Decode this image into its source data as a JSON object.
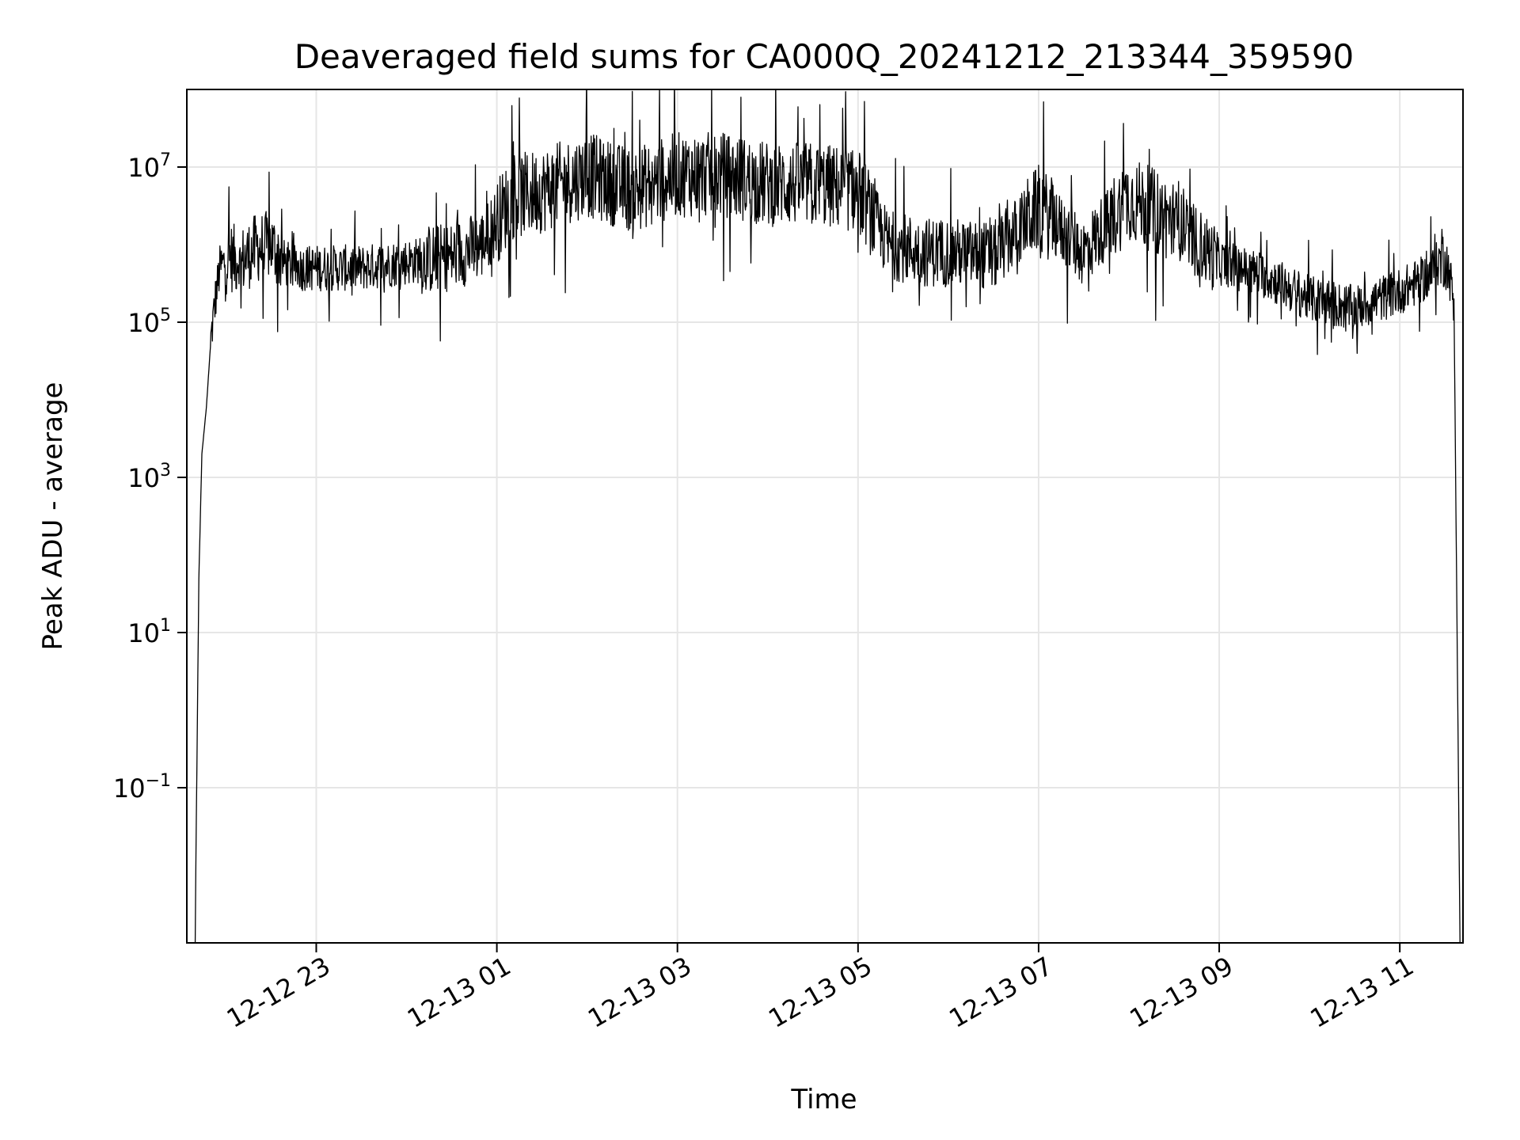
{
  "chart_data": {
    "type": "line",
    "title": "Deaveraged field sums for CA000Q_20241212_213344_359590",
    "xlabel": "Time",
    "ylabel": "Peak ADU - average",
    "yscale": "log",
    "grid": true,
    "legend": "none",
    "line_color": "#000000",
    "grid_color": "#e6e6e6",
    "xlim": [
      "2024-12-12 21:34",
      "2024-12-13 11:42"
    ],
    "ylim": [
      0.001,
      100000000
    ],
    "x_ticks": [
      "2024-12-12 23:00",
      "2024-12-13 01:00",
      "2024-12-13 03:00",
      "2024-12-13 05:00",
      "2024-12-13 07:00",
      "2024-12-13 09:00",
      "2024-12-13 11:00"
    ],
    "x_tick_labels": [
      "12-12 23",
      "12-13 01",
      "12-13 03",
      "12-13 05",
      "12-13 07",
      "12-13 09",
      "12-13 11"
    ],
    "y_ticks": [
      0.1,
      10,
      1000,
      100000,
      10000000
    ],
    "y_tick_labels": [
      {
        "base": "10",
        "exp": "−1"
      },
      {
        "base": "10",
        "exp": "1"
      },
      {
        "base": "10",
        "exp": "3"
      },
      {
        "base": "10",
        "exp": "5"
      },
      {
        "base": "10",
        "exp": "7"
      }
    ],
    "series": [
      {
        "x": [
          "2024-12-12 21:40",
          "2024-12-12 21:42",
          "2024-12-12 21:44",
          "2024-12-12 21:47",
          "2024-12-12 21:50",
          "2024-12-12 21:53",
          "2024-12-12 21:56",
          "2024-12-12 21:59",
          "2024-12-12 22:02",
          "2024-12-12 22:10",
          "2024-12-12 22:20",
          "2024-12-12 22:30",
          "2024-12-12 22:38",
          "2024-12-12 22:45",
          "2024-12-12 23:00",
          "2024-12-12 23:30",
          "2024-12-13 00:00",
          "2024-12-13 00:30",
          "2024-12-13 00:50",
          "2024-12-13 01:10",
          "2024-12-13 01:30",
          "2024-12-13 02:00",
          "2024-12-13 02:30",
          "2024-12-13 03:00",
          "2024-12-13 03:30",
          "2024-12-13 04:00",
          "2024-12-13 04:30",
          "2024-12-13 05:00",
          "2024-12-13 05:20",
          "2024-12-13 05:45",
          "2024-12-13 06:00",
          "2024-12-13 06:30",
          "2024-12-13 07:00",
          "2024-12-13 07:30",
          "2024-12-13 08:00",
          "2024-12-13 08:30",
          "2024-12-13 09:00",
          "2024-12-13 09:30",
          "2024-12-13 10:00",
          "2024-12-13 10:30",
          "2024-12-13 11:00",
          "2024-12-13 11:20",
          "2024-12-13 11:30",
          "2024-12-13 11:36",
          "2024-12-13 11:40"
        ],
        "y": [
          0.01,
          50,
          2000,
          8000,
          60000,
          200000,
          500000,
          600000,
          700000,
          600000,
          900000,
          1000000,
          600000,
          500000,
          500000,
          500000,
          600000,
          700000,
          1000000,
          4000000,
          5000000,
          8000000,
          5000000,
          8000000,
          8000000,
          6000000,
          6000000,
          5000000,
          1000000,
          800000,
          800000,
          700000,
          3000000,
          800000,
          4000000,
          2000000,
          600000,
          400000,
          200000,
          150000,
          250000,
          400000,
          800000,
          200000,
          0.001
        ]
      }
    ]
  }
}
